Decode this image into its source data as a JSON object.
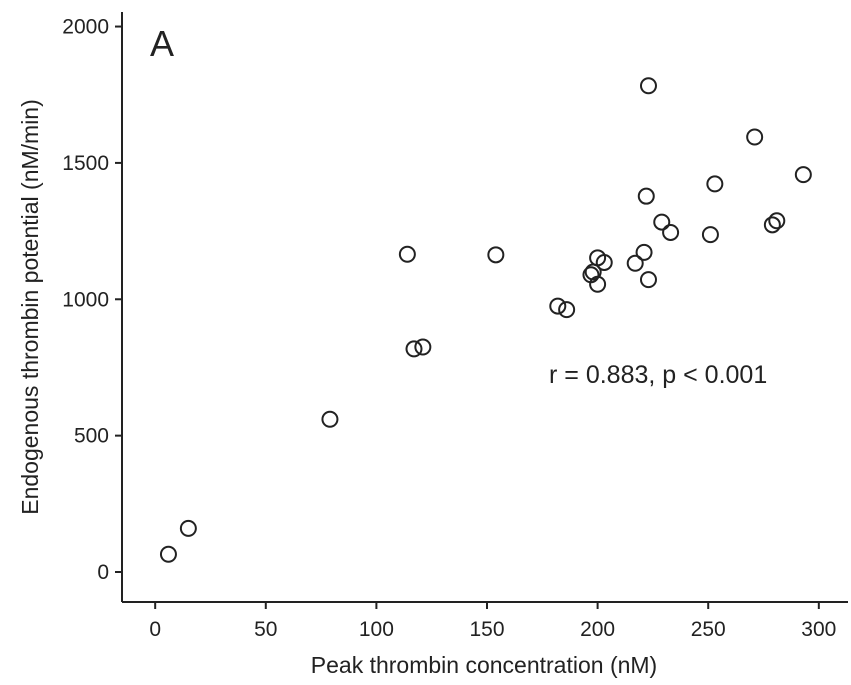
{
  "chart_data": {
    "type": "scatter",
    "panel_label": "A",
    "xlabel": "Peak thrombin concentration (nM)",
    "ylabel": "Endogenous thrombin potential (nM/min)",
    "xlim": [
      -15,
      315
    ],
    "ylim": [
      -110,
      2090
    ],
    "xticks": [
      0,
      50,
      100,
      150,
      200,
      250,
      300
    ],
    "yticks": [
      0,
      500,
      1000,
      1500,
      2000
    ],
    "annotation": "r = 0.883, p < 0.001",
    "grid": false,
    "marker": "open-circle",
    "points": [
      {
        "x": 6,
        "y": 65
      },
      {
        "x": 15,
        "y": 160
      },
      {
        "x": 79,
        "y": 560
      },
      {
        "x": 114,
        "y": 1165
      },
      {
        "x": 117,
        "y": 818
      },
      {
        "x": 121,
        "y": 825
      },
      {
        "x": 154,
        "y": 1163
      },
      {
        "x": 182,
        "y": 975
      },
      {
        "x": 186,
        "y": 962
      },
      {
        "x": 197,
        "y": 1090
      },
      {
        "x": 198,
        "y": 1100
      },
      {
        "x": 200,
        "y": 1152
      },
      {
        "x": 200,
        "y": 1055
      },
      {
        "x": 203,
        "y": 1135
      },
      {
        "x": 217,
        "y": 1132
      },
      {
        "x": 221,
        "y": 1172
      },
      {
        "x": 222,
        "y": 1378
      },
      {
        "x": 223,
        "y": 1072
      },
      {
        "x": 223,
        "y": 1783
      },
      {
        "x": 229,
        "y": 1283
      },
      {
        "x": 233,
        "y": 1245
      },
      {
        "x": 251,
        "y": 1237
      },
      {
        "x": 253,
        "y": 1423
      },
      {
        "x": 271,
        "y": 1595
      },
      {
        "x": 279,
        "y": 1273
      },
      {
        "x": 281,
        "y": 1288
      },
      {
        "x": 293,
        "y": 1457
      }
    ]
  }
}
